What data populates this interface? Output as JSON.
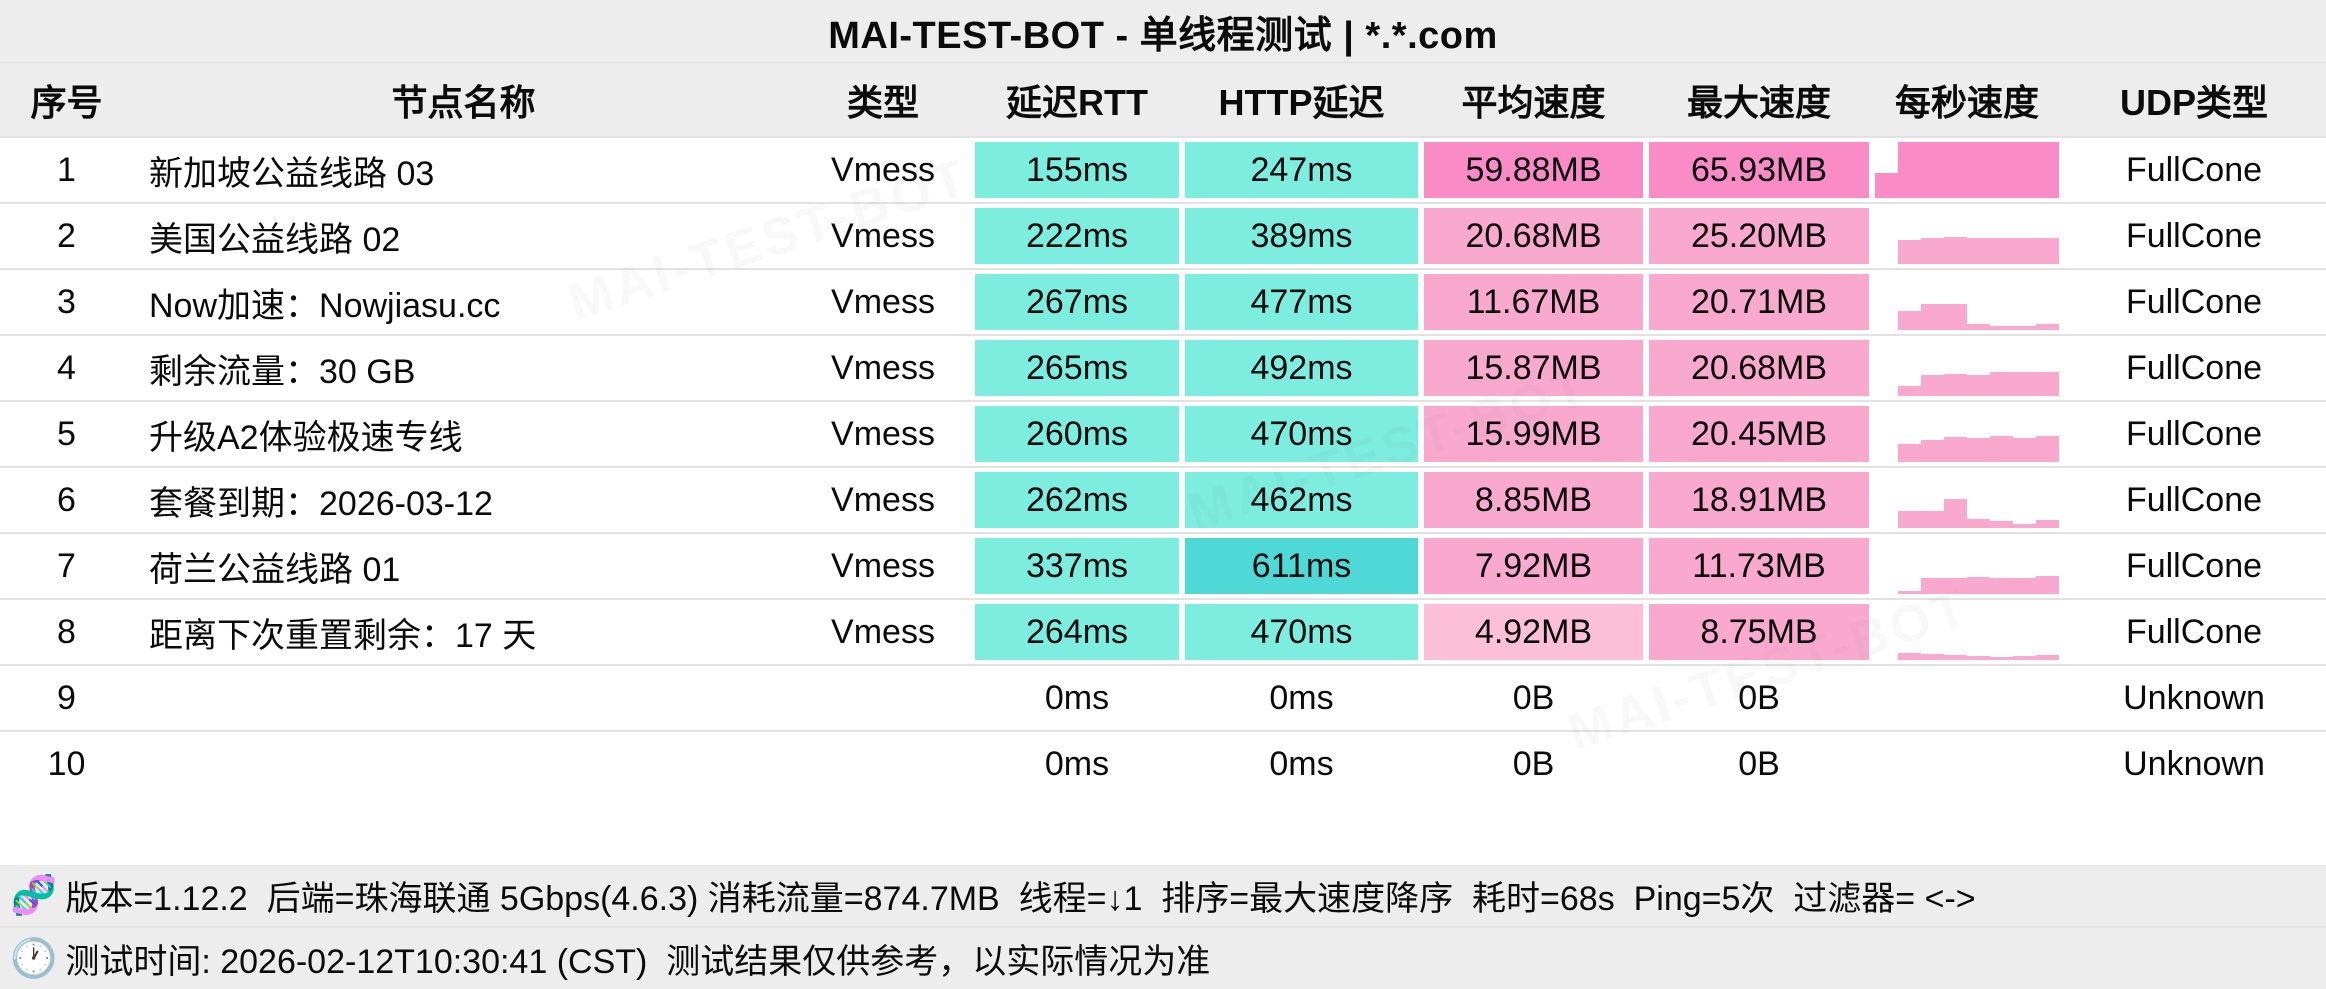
{
  "title": "MAI-TEST-BOT - 单线程测试 | *.*.com",
  "watermark": "MAI-TEST-BOT",
  "colors": {
    "teal": "#7DEDE0",
    "tealDark": "#4FD9D6",
    "pinkStrong": "#F98CC7",
    "pink": "#F9A9CE",
    "pinkLight": "#FBBFD6",
    "band": "#ededed",
    "rowLine": "#e2e2e2"
  },
  "chart_data": {
    "type": "table",
    "columns": [
      "序号",
      "节点名称",
      "类型",
      "延迟RTT",
      "HTTP延迟",
      "平均速度",
      "最大速度",
      "每秒速度",
      "UDP类型"
    ],
    "rows": [
      {
        "seq": "1",
        "name": "新加坡公益线路 03",
        "type": "Vmess",
        "rtt": "155ms",
        "http": "247ms",
        "avg": "59.88MB",
        "max": "65.93MB",
        "udp": "FullCone",
        "tones": {
          "rtt": "teal",
          "http": "teal",
          "avg": "pinkStrong",
          "max": "pinkStrong",
          "spark": "pinkStrong"
        },
        "spark": [
          0.45,
          1,
          1,
          1,
          1,
          1,
          1,
          1
        ]
      },
      {
        "seq": "2",
        "name": "美国公益线路 02",
        "type": "Vmess",
        "rtt": "222ms",
        "http": "389ms",
        "avg": "20.68MB",
        "max": "25.20MB",
        "udp": "FullCone",
        "tones": {
          "rtt": "teal",
          "http": "teal",
          "avg": "pink",
          "max": "pink",
          "spark": "pink"
        },
        "spark": [
          0,
          0.42,
          0.46,
          0.48,
          0.46,
          0.46,
          0.46,
          0.46
        ]
      },
      {
        "seq": "3",
        "name": "Now加速：Nowjiasu.cc",
        "type": "Vmess",
        "rtt": "267ms",
        "http": "477ms",
        "avg": "11.67MB",
        "max": "20.71MB",
        "udp": "FullCone",
        "tones": {
          "rtt": "teal",
          "http": "teal",
          "avg": "pink",
          "max": "pink",
          "spark": "pink"
        },
        "spark": [
          0,
          0.34,
          0.46,
          0.46,
          0.1,
          0.07,
          0.07,
          0.1
        ]
      },
      {
        "seq": "4",
        "name": "剩余流量：30 GB",
        "type": "Vmess",
        "rtt": "265ms",
        "http": "492ms",
        "avg": "15.87MB",
        "max": "20.68MB",
        "udp": "FullCone",
        "tones": {
          "rtt": "teal",
          "http": "teal",
          "avg": "pink",
          "max": "pink",
          "spark": "pink"
        },
        "spark": [
          0,
          0.18,
          0.38,
          0.4,
          0.38,
          0.42,
          0.42,
          0.42
        ]
      },
      {
        "seq": "5",
        "name": "升级A2体验极速专线",
        "type": "Vmess",
        "rtt": "260ms",
        "http": "470ms",
        "avg": "15.99MB",
        "max": "20.45MB",
        "udp": "FullCone",
        "tones": {
          "rtt": "teal",
          "http": "teal",
          "avg": "pink",
          "max": "pink",
          "spark": "pink"
        },
        "spark": [
          0,
          0.32,
          0.4,
          0.44,
          0.42,
          0.46,
          0.42,
          0.46
        ]
      },
      {
        "seq": "6",
        "name": "套餐到期：2026-03-12",
        "type": "Vmess",
        "rtt": "262ms",
        "http": "462ms",
        "avg": "8.85MB",
        "max": "18.91MB",
        "udp": "FullCone",
        "tones": {
          "rtt": "teal",
          "http": "teal",
          "avg": "pink",
          "max": "pink",
          "spark": "pink"
        },
        "spark": [
          0,
          0.3,
          0.3,
          0.52,
          0.16,
          0.12,
          0.08,
          0.14
        ]
      },
      {
        "seq": "7",
        "name": "荷兰公益线路 01",
        "type": "Vmess",
        "rtt": "337ms",
        "http": "611ms",
        "avg": "7.92MB",
        "max": "11.73MB",
        "udp": "FullCone",
        "tones": {
          "rtt": "teal",
          "http": "tealDark",
          "avg": "pink",
          "max": "pink",
          "spark": "pink"
        },
        "spark": [
          0,
          0.06,
          0.28,
          0.28,
          0.3,
          0.28,
          0.28,
          0.32
        ]
      },
      {
        "seq": "8",
        "name": "距离下次重置剩余：17 天",
        "type": "Vmess",
        "rtt": "264ms",
        "http": "470ms",
        "avg": "4.92MB",
        "max": "8.75MB",
        "udp": "FullCone",
        "tones": {
          "rtt": "teal",
          "http": "teal",
          "avg": "pinkLight",
          "max": "pink",
          "spark": "pink"
        },
        "spark": [
          0,
          0.12,
          0.1,
          0.09,
          0.07,
          0.05,
          0.07,
          0.09
        ]
      },
      {
        "seq": "9",
        "name": "",
        "type": "",
        "rtt": "0ms",
        "http": "0ms",
        "avg": "0B",
        "max": "0B",
        "udp": "Unknown",
        "tones": {
          "rtt": "none",
          "http": "none",
          "avg": "none",
          "max": "none",
          "spark": "none"
        },
        "spark": []
      },
      {
        "seq": "10",
        "name": "",
        "type": "",
        "rtt": "0ms",
        "http": "0ms",
        "avg": "0B",
        "max": "0B",
        "udp": "Unknown",
        "tones": {
          "rtt": "none",
          "http": "none",
          "avg": "none",
          "max": "none",
          "spark": "none"
        },
        "spark": []
      }
    ]
  },
  "footer": {
    "dna_icon": "🧬",
    "clock_icon": "🕐",
    "line1": "版本=1.12.2  后端=珠海联通 5Gbps(4.6.3) 消耗流量=874.7MB  线程=↓1  排序=最大速度降序  耗时=68s  Ping=5次  过滤器= <->",
    "line2": "测试时间: 2026-02-12T10:30:41 (CST)  测试结果仅供参考，以实际情况为准"
  }
}
